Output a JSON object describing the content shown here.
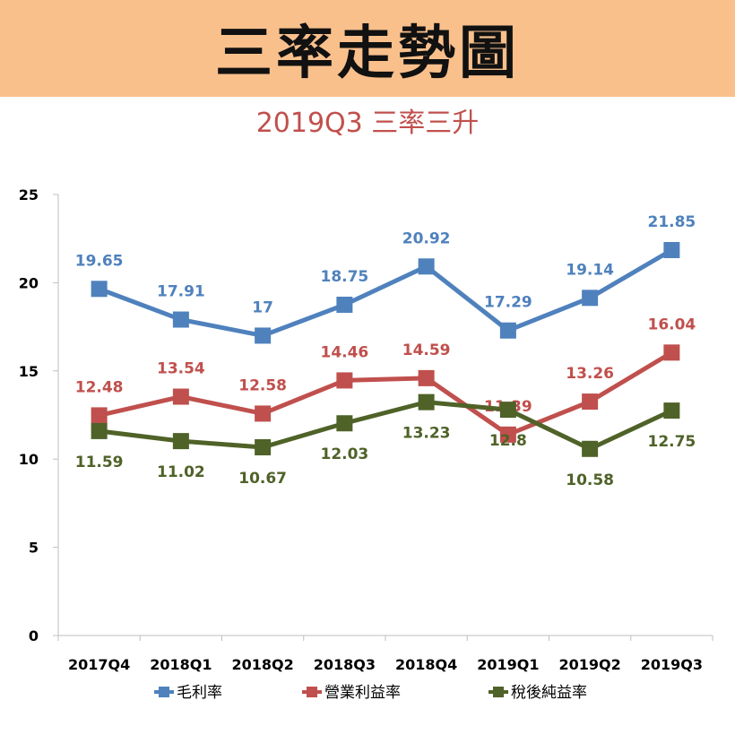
{
  "banner": {
    "title": "三率走勢圖"
  },
  "colors": {
    "banner_bg": "#f9c08c",
    "subtitle": "#c0504d"
  },
  "chart_data": {
    "type": "line",
    "title": "2019Q3 三率三升",
    "categories": [
      "2017Q4",
      "2018Q1",
      "2018Q2",
      "2018Q3",
      "2018Q4",
      "2019Q1",
      "2019Q2",
      "2019Q3"
    ],
    "ylim": [
      0,
      25
    ],
    "yticks": [
      0,
      5,
      10,
      15,
      20,
      25
    ],
    "grid": false,
    "legend": "bottom",
    "series": [
      {
        "name": "毛利率",
        "color": "#4f81bd",
        "label_position": "above",
        "values": [
          19.65,
          17.91,
          17,
          18.75,
          20.92,
          17.29,
          19.14,
          21.85
        ]
      },
      {
        "name": "營業利益率",
        "color": "#c0504d",
        "label_position": "above",
        "values": [
          12.48,
          13.54,
          12.58,
          14.46,
          14.59,
          11.39,
          13.26,
          16.04
        ]
      },
      {
        "name": "稅後純益率",
        "color": "#4f6228",
        "label_position": "below",
        "values": [
          11.59,
          11.02,
          10.67,
          12.03,
          13.23,
          12.8,
          10.58,
          12.75
        ]
      }
    ]
  }
}
